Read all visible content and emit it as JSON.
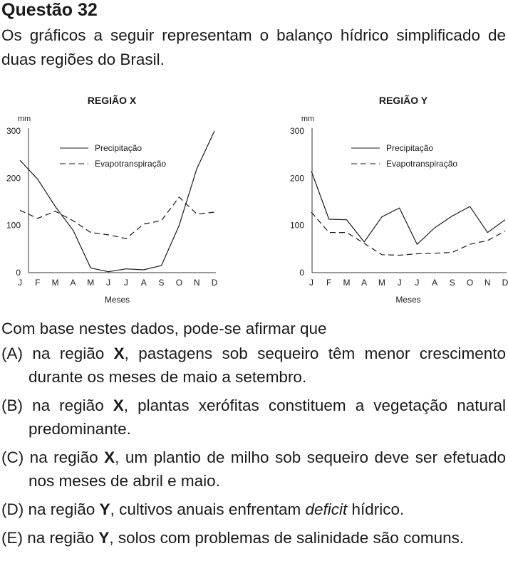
{
  "heading": "Questão 32",
  "intro": "Os gráficos a seguir representam o balanço hídrico simplificado de duas regiões do Brasil.",
  "chart_data": [
    {
      "type": "line",
      "title": "REGIÃO X",
      "ylabel": "mm",
      "xlabel": "Meses",
      "categories": [
        "J",
        "F",
        "M",
        "A",
        "M",
        "J",
        "J",
        "A",
        "S",
        "O",
        "N",
        "D"
      ],
      "ylim": [
        0,
        300
      ],
      "yticks": [
        "0",
        "100",
        "200",
        "300"
      ],
      "legend_position": "top-center",
      "grid": false,
      "series": [
        {
          "name": "Precipitação",
          "style": "solid",
          "values": [
            238,
            198,
            140,
            90,
            10,
            2,
            8,
            6,
            15,
            100,
            220,
            300
          ]
        },
        {
          "name": "Evapotranspiração",
          "style": "dashed",
          "values": [
            132,
            115,
            130,
            110,
            85,
            80,
            72,
            103,
            110,
            160,
            124,
            128
          ]
        }
      ]
    },
    {
      "type": "line",
      "title": "REGIÃO Y",
      "ylabel": "mm",
      "xlabel": "Meses",
      "categories": [
        "J",
        "F",
        "M",
        "A",
        "M",
        "J",
        "J",
        "A",
        "S",
        "O",
        "N",
        "D"
      ],
      "ylim": [
        0,
        300
      ],
      "yticks": [
        "0",
        "100",
        "200",
        "300"
      ],
      "legend_position": "top-center",
      "grid": false,
      "series": [
        {
          "name": "Precipitação",
          "style": "solid",
          "values": [
            215,
            113,
            112,
            65,
            118,
            137,
            60,
            95,
            120,
            140,
            85,
            112
          ]
        },
        {
          "name": "Evapotranspiração",
          "style": "dashed",
          "values": [
            128,
            85,
            85,
            62,
            38,
            37,
            40,
            41,
            43,
            60,
            68,
            88
          ]
        }
      ]
    }
  ],
  "question": "Com base nestes dados, pode-se afirmar que",
  "options": [
    {
      "letter": "(A)",
      "pre": " na região ",
      "strong": "X",
      "post": ", pastagens sob sequeiro têm menor crescimento durante os meses de maio a setembro."
    },
    {
      "letter": "(B)",
      "pre": " na região ",
      "strong": "X",
      "post": ", plantas xerófitas constituem a vegetação natural predominante."
    },
    {
      "letter": "(C)",
      "pre": " na região ",
      "strong": "X",
      "post": ", um plantio de milho sob sequeiro deve ser efetuado nos meses de abril e maio."
    },
    {
      "letter": "(D)",
      "pre": " na região ",
      "strong": "Y",
      "post": ", cultivos anuais enfrentam ",
      "em": "deficit",
      "tail": " hídrico."
    },
    {
      "letter": "(E)",
      "pre": " na região ",
      "strong": "Y",
      "post": ", solos com problemas de salinidade são comuns."
    }
  ]
}
